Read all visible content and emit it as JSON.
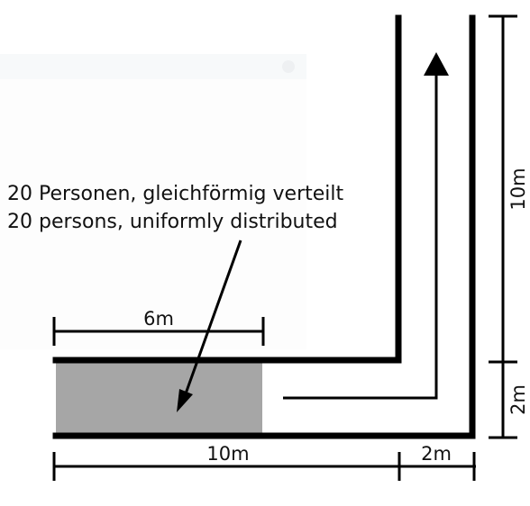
{
  "diagram": {
    "caption_de": "20 Personen, gleichförmig verteilt",
    "caption_en": "20 persons, uniformly distributed",
    "dim_start_area": "6m",
    "dim_corridor_horizontal": "10m",
    "dim_corridor_width_bottom": "2m",
    "dim_corridor_vertical": "10m",
    "dim_corridor_width_right": "2m"
  },
  "colors": {
    "wall": "#000000",
    "start_area": "#a6a6a6",
    "text": "#111111"
  }
}
